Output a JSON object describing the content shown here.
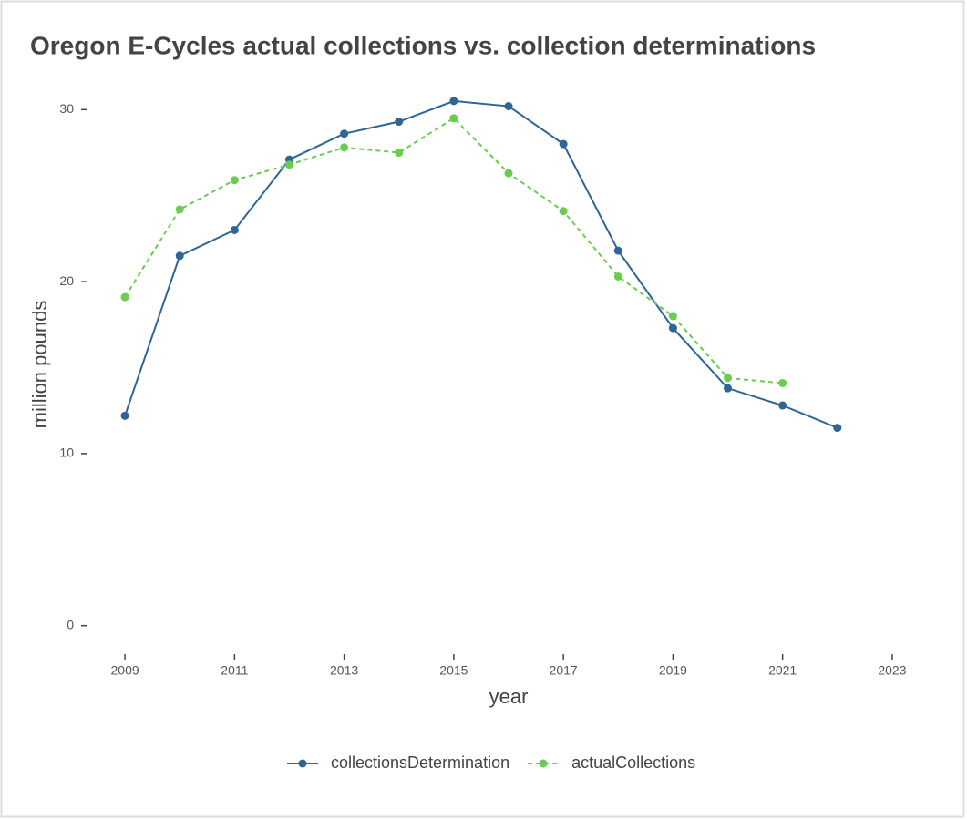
{
  "chart_data": {
    "type": "line",
    "title": "Oregon E-Cycles actual collections vs. collection determinations",
    "xlabel": "year",
    "ylabel": "million pounds",
    "x": [
      2009,
      2010,
      2011,
      2012,
      2013,
      2014,
      2015,
      2016,
      2017,
      2018,
      2019,
      2020,
      2021,
      2022
    ],
    "series": [
      {
        "name": "collectionsDetermination",
        "color": "#2f6594",
        "dash": "solid",
        "values": [
          12.2,
          21.5,
          23.0,
          27.1,
          28.6,
          29.3,
          30.5,
          30.2,
          28.0,
          21.8,
          17.3,
          13.8,
          12.8,
          11.5
        ]
      },
      {
        "name": "actualCollections",
        "color": "#6acd4f",
        "dash": "dashed",
        "values": [
          19.1,
          24.2,
          25.9,
          26.8,
          27.8,
          27.5,
          29.5,
          26.3,
          24.1,
          20.3,
          18.0,
          14.4,
          14.1,
          null
        ]
      }
    ],
    "xlim": [
      2008.4,
      2023.6
    ],
    "xticks": [
      2009,
      2011,
      2013,
      2015,
      2017,
      2019,
      2021,
      2023
    ],
    "ylim": [
      -1.5,
      31.5
    ],
    "yticks": [
      0,
      10,
      20,
      30
    ],
    "legend": "bottom"
  }
}
